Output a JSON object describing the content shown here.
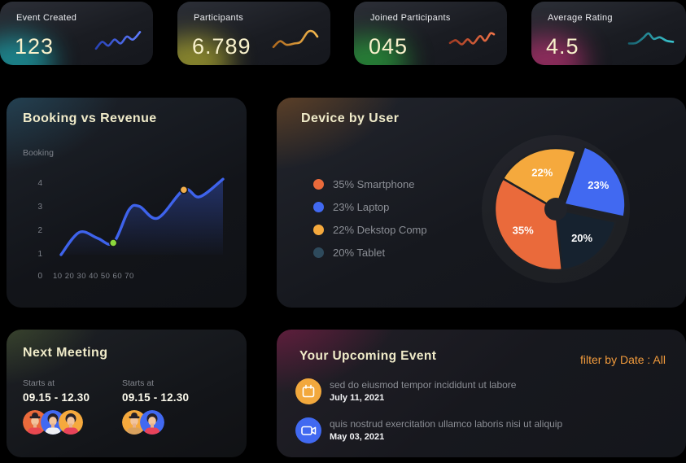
{
  "stat_cards": [
    {
      "label": "Event Created",
      "value": "123",
      "glow": "#1fd9e2",
      "spark": {
        "from": "#2742b8",
        "to": "#5f7cff",
        "points": [
          [
            0,
            0.85
          ],
          [
            0.14,
            0.55
          ],
          [
            0.28,
            0.72
          ],
          [
            0.42,
            0.45
          ],
          [
            0.56,
            0.62
          ],
          [
            0.7,
            0.32
          ],
          [
            0.84,
            0.45
          ],
          [
            1,
            0.12
          ]
        ]
      }
    },
    {
      "label": "Participants",
      "value": "6.789",
      "glow": "#e4dd37",
      "spark": {
        "from": "#b06a1e",
        "to": "#f5b94e",
        "points": [
          [
            0,
            0.78
          ],
          [
            0.15,
            0.52
          ],
          [
            0.3,
            0.68
          ],
          [
            0.48,
            0.62
          ],
          [
            0.62,
            0.55
          ],
          [
            0.78,
            0.12
          ],
          [
            0.9,
            0.1
          ],
          [
            1,
            0.32
          ]
        ]
      }
    },
    {
      "label": "Joined Participants",
      "value": "045",
      "glow": "#32d047",
      "spark": {
        "from": "#a33b22",
        "to": "#ef7348",
        "points": [
          [
            0,
            0.6
          ],
          [
            0.13,
            0.48
          ],
          [
            0.27,
            0.66
          ],
          [
            0.4,
            0.44
          ],
          [
            0.53,
            0.62
          ],
          [
            0.68,
            0.3
          ],
          [
            0.8,
            0.5
          ],
          [
            0.92,
            0.18
          ],
          [
            1,
            0.22
          ]
        ]
      }
    },
    {
      "label": "Average Rating",
      "value": "4.5",
      "glow": "#ee3a8d",
      "spark": {
        "from": "#17606e",
        "to": "#3ac8d2",
        "points": [
          [
            0,
            0.62
          ],
          [
            0.16,
            0.6
          ],
          [
            0.32,
            0.38
          ],
          [
            0.44,
            0.18
          ],
          [
            0.56,
            0.42
          ],
          [
            0.7,
            0.35
          ],
          [
            0.85,
            0.5
          ],
          [
            1,
            0.55
          ]
        ]
      }
    }
  ],
  "chart_data": [
    {
      "type": "line",
      "title": "Booking vs Revenue",
      "ylabel": "Booking",
      "x": [
        10,
        17,
        24,
        30,
        36,
        40,
        47,
        57,
        63,
        72
      ],
      "y": [
        1,
        1.95,
        1.7,
        1.5,
        2.9,
        3.05,
        2.55,
        3.75,
        3.45,
        4.2
      ],
      "xlim": [
        0,
        75
      ],
      "ylim": [
        0,
        4.5
      ],
      "x_tick_labels": "10 20 30 40 50 60 70",
      "y_tick_labels": [
        "0",
        "1",
        "2",
        "3",
        "4"
      ],
      "line_color": "#3e63ec",
      "fill_color": "#3e63ec",
      "markers": [
        {
          "index": 3,
          "color": "#8cd83c"
        },
        {
          "index": 7,
          "color": "#f2ae4c"
        }
      ],
      "grid": false,
      "legend_position": "none"
    },
    {
      "type": "pie",
      "title": "Device by User",
      "labels": [
        "Smartphone",
        "Laptop",
        "Dekstop Comp",
        "Tablet"
      ],
      "values": [
        35,
        23,
        22,
        20
      ],
      "value_labels": [
        "35%",
        "23%",
        "22%",
        "20%"
      ],
      "colors": [
        "#ea6a3b",
        "#4169f1",
        "#f5a93d",
        "#16222f"
      ],
      "legend_dot_colors": [
        "#ea6a3b",
        "#4169f1",
        "#f5a93d",
        "#2e4a5c"
      ],
      "legend_labels": [
        "35% Smartphone",
        "23% Laptop",
        "22% Dekstop Comp",
        "20% Tablet"
      ],
      "start_angle": 300,
      "draw_order": [
        2,
        1,
        3,
        0
      ],
      "exploded_index": 1,
      "explode_offset": 12,
      "donut_hole": true,
      "legend_position": "left"
    }
  ],
  "next_meeting": {
    "title": "Next Meeting",
    "sessions": [
      {
        "starts_label": "Starts at",
        "time": "09.15 - 12.30",
        "avatars": [
          {
            "bg": "#ea6a3b",
            "shirt": "#e84850",
            "hat": true
          },
          {
            "bg": "#4169f1",
            "shirt": "#eef0f4",
            "hat": false
          },
          {
            "bg": "#f5a93d",
            "shirt": "#e8435a",
            "hat": false
          }
        ]
      },
      {
        "starts_label": "Starts at",
        "time": "09.15 - 12.30",
        "avatars": [
          {
            "bg": "#f5a93d",
            "shirt": "#d9a15e",
            "hat": true
          },
          {
            "bg": "#4169f1",
            "shirt": "#e8435a",
            "hat": false
          }
        ]
      }
    ]
  },
  "upcoming": {
    "title": "Your Upcoming Event",
    "filter_label": "filter by Date : All",
    "events": [
      {
        "icon": "calendar-icon",
        "icon_bg": "#f2a83d",
        "title": "sed do eiusmod tempor incididunt ut labore",
        "date": "July 11, 2021"
      },
      {
        "icon": "video-icon",
        "icon_bg": "#4169f1",
        "title": "quis nostrud exercitation ullamco laboris nisi ut aliquip",
        "date": "May 03, 2021"
      }
    ]
  }
}
